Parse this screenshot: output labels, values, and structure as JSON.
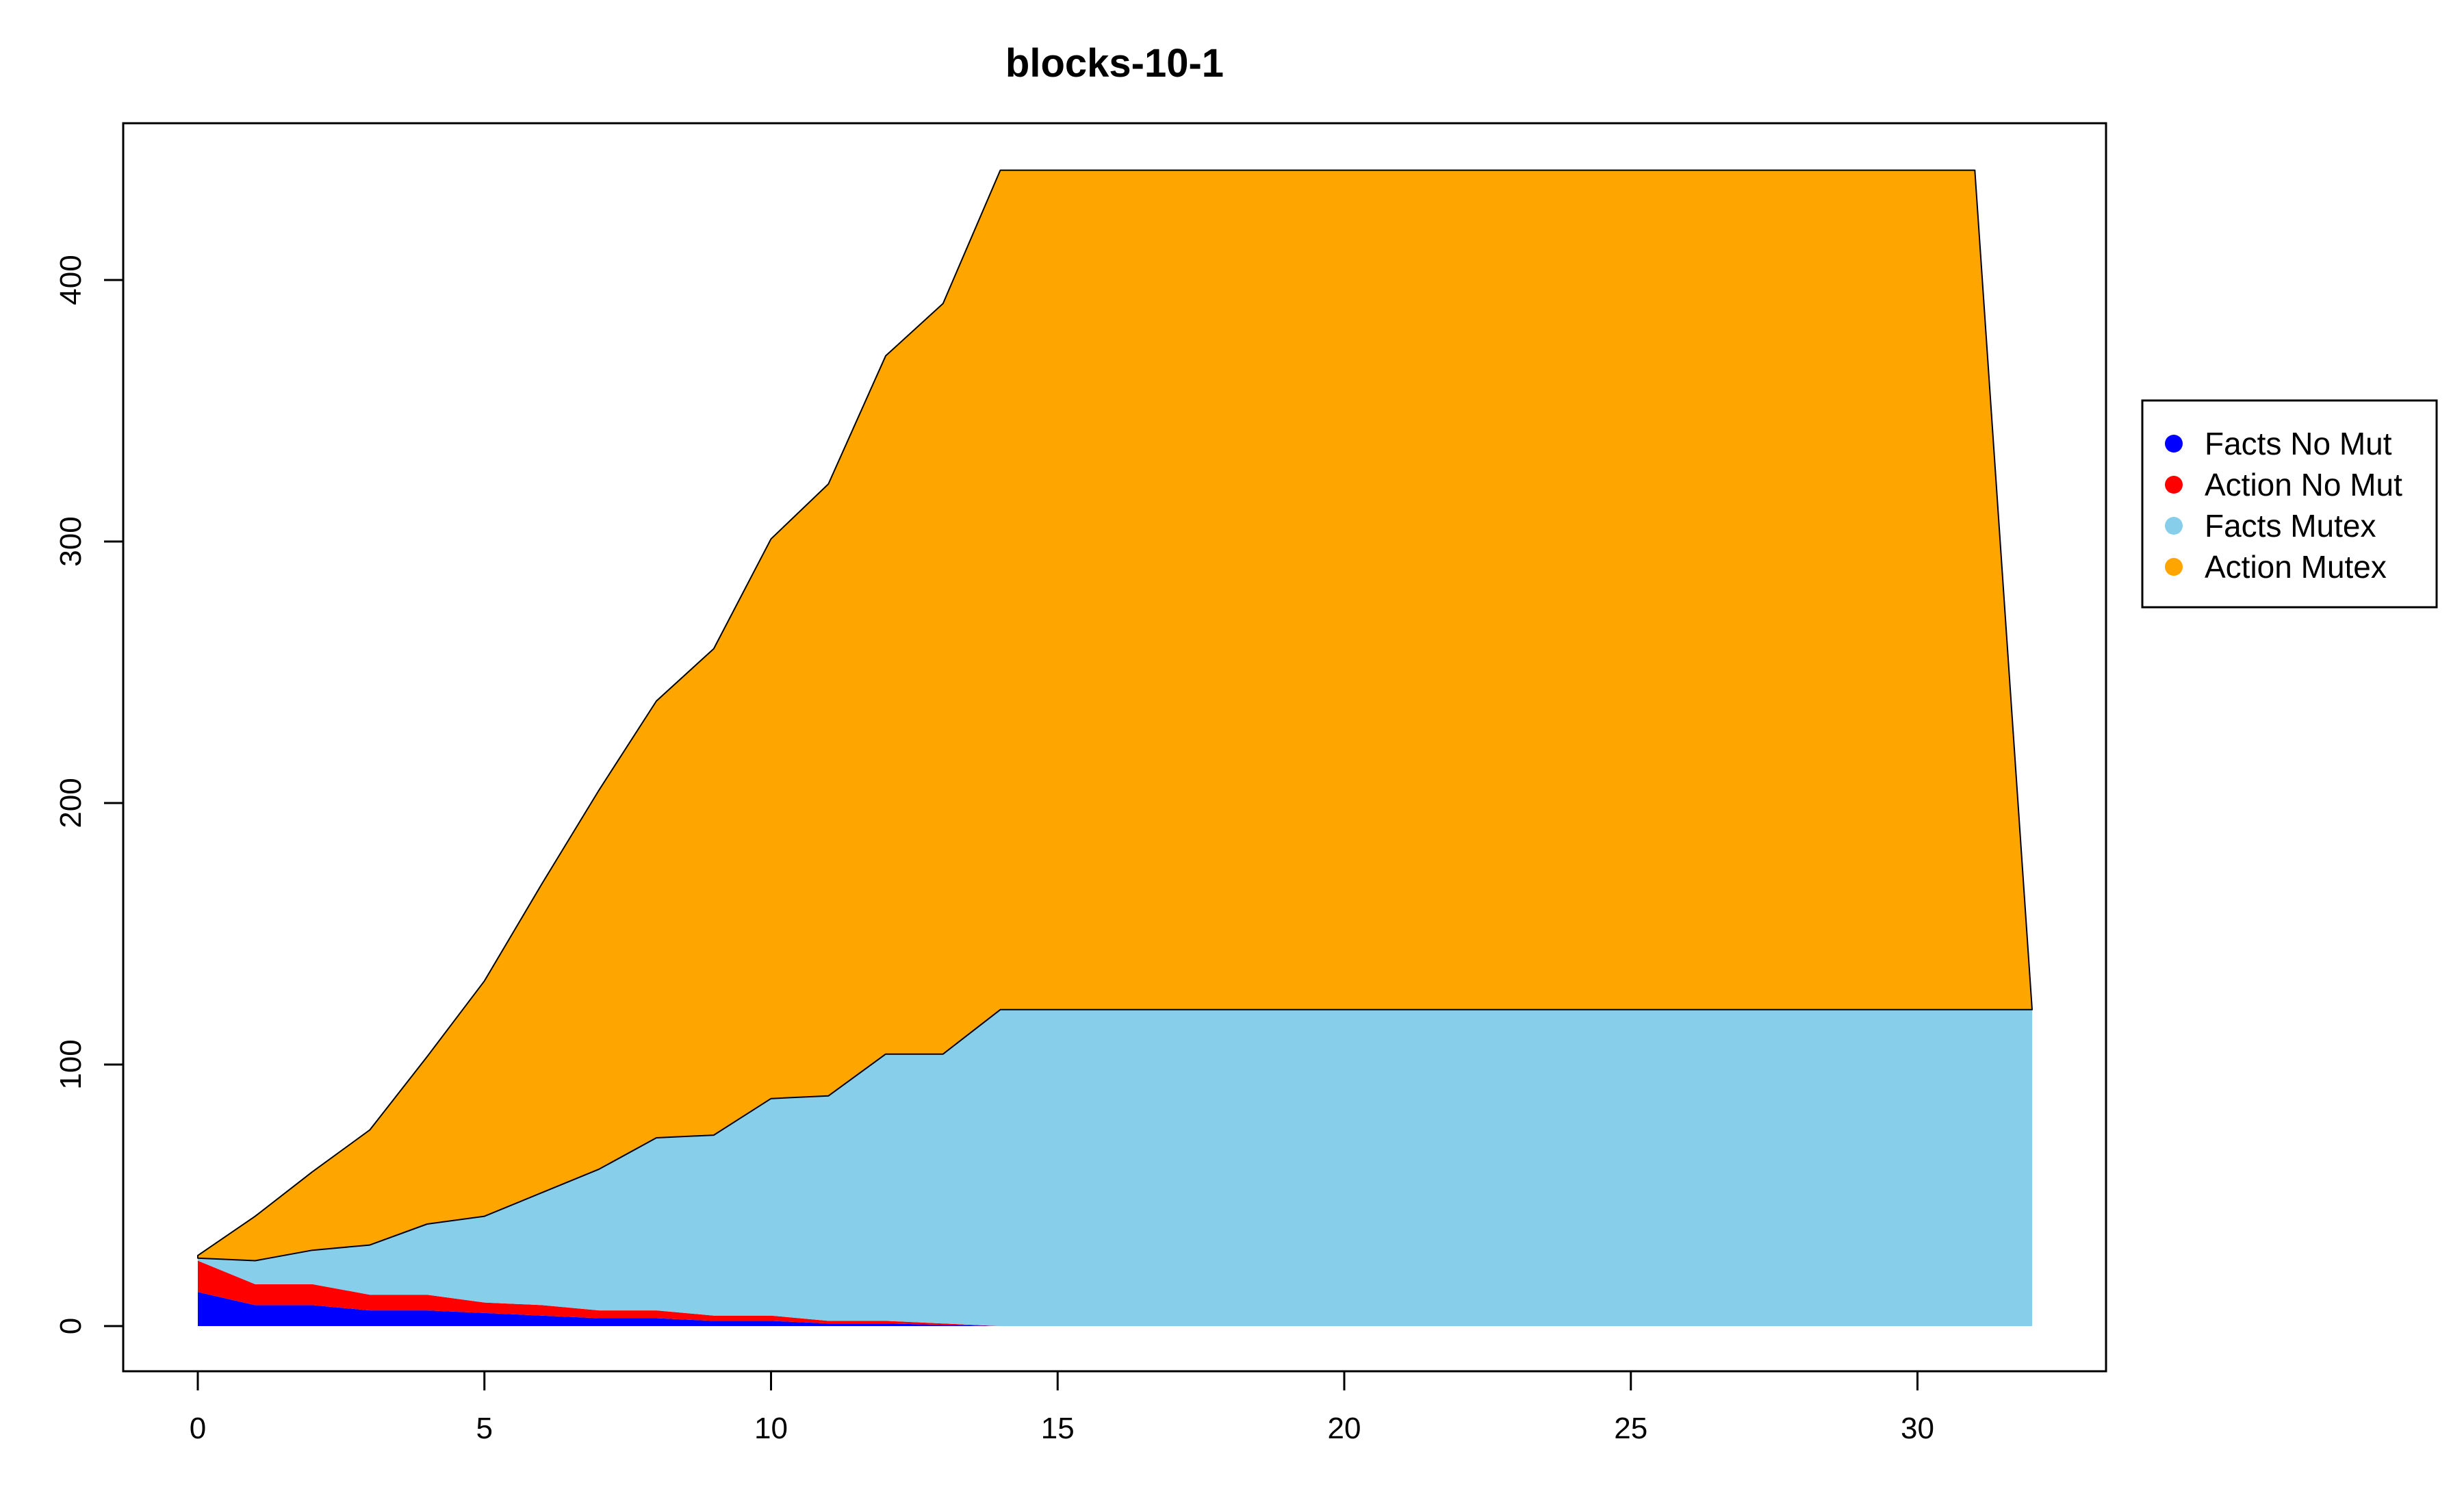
{
  "chart_data": {
    "type": "area",
    "stacked": true,
    "title": "blocks-10-1",
    "xlabel": "",
    "ylabel": "",
    "xlim": [
      0,
      32
    ],
    "ylim": [
      0,
      445
    ],
    "xticks": [
      0,
      5,
      10,
      15,
      20,
      25,
      30
    ],
    "yticks": [
      0,
      100,
      200,
      300,
      400
    ],
    "grid": false,
    "legend_position": "right",
    "x": [
      0,
      1,
      2,
      3,
      4,
      5,
      6,
      7,
      8,
      9,
      10,
      11,
      12,
      13,
      14,
      15,
      16,
      17,
      18,
      19,
      20,
      21,
      22,
      23,
      24,
      25,
      26,
      27,
      28,
      29,
      30,
      31,
      32
    ],
    "series": [
      {
        "name": "Facts No Mut",
        "color": "#0000FF",
        "values": [
          13,
          8,
          8,
          6,
          6,
          5,
          4,
          3,
          3,
          2,
          2,
          1,
          1,
          0.5,
          0,
          0,
          0,
          0,
          0,
          0,
          0,
          0,
          0,
          0,
          0,
          0,
          0,
          0,
          0,
          0,
          0,
          0,
          0
        ]
      },
      {
        "name": "Action No Mut",
        "color": "#FF0000",
        "values": [
          12,
          8,
          8,
          6,
          6,
          4,
          4,
          3,
          3,
          2,
          2,
          1,
          1,
          0.5,
          0,
          0,
          0,
          0,
          0,
          0,
          0,
          0,
          0,
          0,
          0,
          0,
          0,
          0,
          0,
          0,
          0,
          0,
          0
        ]
      },
      {
        "name": "Facts Mutex",
        "color": "#87CEEB",
        "values": [
          1,
          9,
          13,
          19,
          27,
          33,
          43,
          54,
          66,
          69,
          83,
          86,
          102,
          103,
          121,
          121,
          121,
          121,
          121,
          121,
          121,
          121,
          121,
          121,
          121,
          121,
          121,
          121,
          121,
          121,
          121,
          121,
          121
        ]
      },
      {
        "name": "Action Mutex",
        "color": "#FFA500",
        "values": [
          1,
          17,
          30,
          44,
          64,
          90,
          118,
          145,
          167,
          186,
          214,
          234,
          267,
          287,
          321,
          321,
          321,
          321,
          321,
          321,
          321,
          321,
          321,
          321,
          321,
          321,
          321,
          321,
          321,
          321,
          321,
          321,
          0
        ]
      }
    ]
  }
}
